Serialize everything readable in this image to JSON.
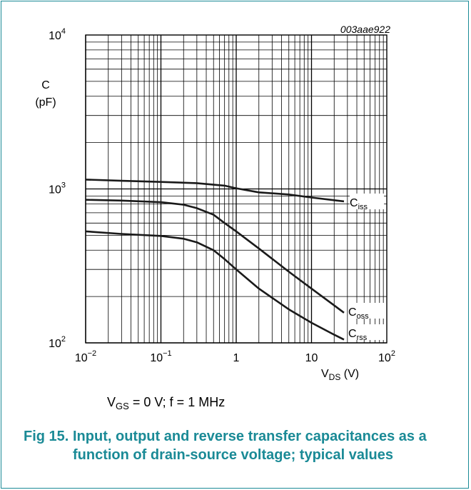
{
  "figure": {
    "code": "003aae922",
    "condition": {
      "prefix": "V",
      "sub": "GS",
      "rest": " = 0 V; f = 1 MHz"
    },
    "caption_label": "Fig 15.",
    "caption_text": "Input, output and reverse transfer capacitances as a function of drain-source voltage; typical values"
  },
  "chart_data": {
    "type": "line",
    "xscale": "log",
    "yscale": "log",
    "xlim": [
      0.01,
      100
    ],
    "ylim": [
      100,
      10000
    ],
    "grid": true,
    "ylabel_lines": [
      "C",
      "(pF)"
    ],
    "xlabel": {
      "main": "V",
      "sub": "DS",
      "unit": " (V)"
    },
    "x_ticks": [
      {
        "value": 0.01,
        "base": "10",
        "exp": "−2"
      },
      {
        "value": 0.1,
        "base": "10",
        "exp": "−1"
      },
      {
        "value": 1,
        "base": "1",
        "exp": ""
      },
      {
        "value": 10,
        "base": "10",
        "exp": ""
      },
      {
        "value": 100,
        "base": "10",
        "exp": "2"
      }
    ],
    "y_ticks": [
      {
        "value": 100,
        "base": "10",
        "exp": "2"
      },
      {
        "value": 1000,
        "base": "10",
        "exp": "3"
      },
      {
        "value": 10000,
        "base": "10",
        "exp": "4"
      }
    ],
    "series": [
      {
        "name": "Ciss",
        "label": {
          "main": "C",
          "sub": "iss"
        },
        "x": [
          0.01,
          0.03,
          0.1,
          0.3,
          0.7,
          1,
          2,
          5,
          10,
          20,
          27
        ],
        "y": [
          1150,
          1130,
          1110,
          1090,
          1050,
          1010,
          950,
          920,
          880,
          845,
          830
        ]
      },
      {
        "name": "Coss",
        "label": {
          "main": "C",
          "sub": "oss"
        },
        "x": [
          0.01,
          0.03,
          0.1,
          0.2,
          0.3,
          0.5,
          0.7,
          1,
          2,
          5,
          10,
          20,
          27
        ],
        "y": [
          850,
          840,
          820,
          790,
          750,
          680,
          600,
          530,
          410,
          290,
          225,
          175,
          157
        ]
      },
      {
        "name": "Crss",
        "label": {
          "main": "C",
          "sub": "rss"
        },
        "x": [
          0.01,
          0.03,
          0.1,
          0.2,
          0.3,
          0.5,
          0.7,
          1,
          2,
          5,
          10,
          20,
          27
        ],
        "y": [
          530,
          510,
          495,
          475,
          450,
          400,
          350,
          300,
          225,
          165,
          135,
          113,
          105
        ]
      }
    ],
    "colors": {
      "curve": "#1a1a1a",
      "grid": "#000000",
      "caption": "#1a8a96"
    }
  }
}
